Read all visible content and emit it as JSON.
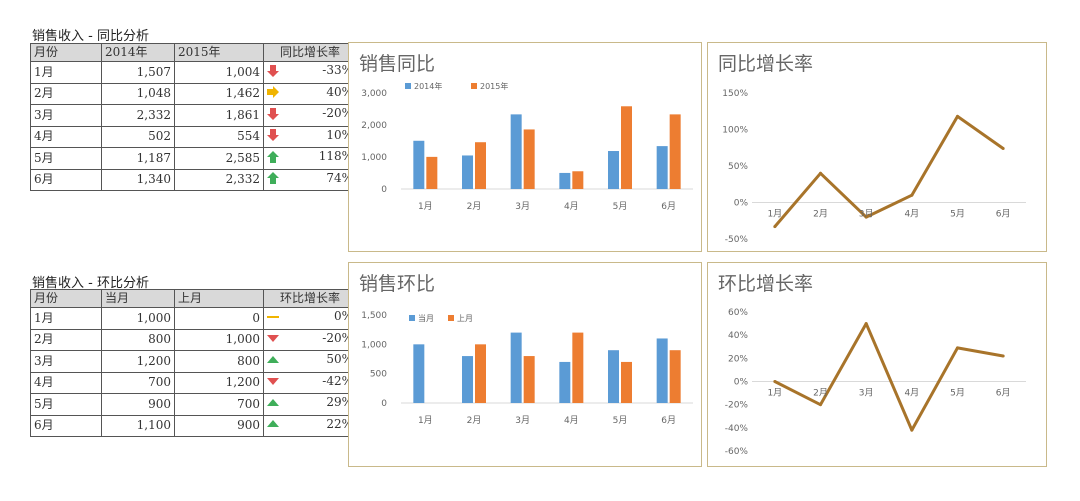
{
  "tables": {
    "yoy": {
      "title": "销售收入 - 同比分析",
      "headers": [
        "月份",
        "2014年",
        "2015年",
        "同比增长率"
      ],
      "rows": [
        {
          "month": "1月",
          "a": "1,507",
          "b": "1,004",
          "icon": "down-arrow-red",
          "pct": "-33%"
        },
        {
          "month": "2月",
          "a": "1,048",
          "b": "1,462",
          "icon": "right-arrow-yellow",
          "pct": "40%"
        },
        {
          "month": "3月",
          "a": "2,332",
          "b": "1,861",
          "icon": "down-arrow-red",
          "pct": "-20%"
        },
        {
          "month": "4月",
          "a": "502",
          "b": "554",
          "icon": "down-arrow-red",
          "pct": "10%"
        },
        {
          "month": "5月",
          "a": "1,187",
          "b": "2,585",
          "icon": "up-arrow-green",
          "pct": "118%"
        },
        {
          "month": "6月",
          "a": "1,340",
          "b": "2,332",
          "icon": "up-arrow-green",
          "pct": "74%"
        }
      ]
    },
    "mom": {
      "title": "销售收入 - 环比分析",
      "headers": [
        "月份",
        "当月",
        "上月",
        "环比增长率"
      ],
      "rows": [
        {
          "month": "1月",
          "a": "1,000",
          "b": "0",
          "icon": "flat-dash-yellow",
          "pct": "0%"
        },
        {
          "month": "2月",
          "a": "800",
          "b": "1,000",
          "icon": "down-triangle-red",
          "pct": "-20%"
        },
        {
          "month": "3月",
          "a": "1,200",
          "b": "800",
          "icon": "up-triangle-green",
          "pct": "50%"
        },
        {
          "month": "4月",
          "a": "700",
          "b": "1,200",
          "icon": "down-triangle-red",
          "pct": "-42%"
        },
        {
          "month": "5月",
          "a": "900",
          "b": "700",
          "icon": "up-triangle-green",
          "pct": "29%"
        },
        {
          "month": "6月",
          "a": "1,100",
          "b": "900",
          "icon": "up-triangle-green",
          "pct": "22%"
        }
      ]
    }
  },
  "colors": {
    "series_blue": "#5b9bd5",
    "series_orange": "#ed7d31",
    "line_color": "#a8742a",
    "arrow_red": "#e05050",
    "arrow_green": "#3fae5a",
    "arrow_yellow": "#f0b400",
    "panel_border": "#c9b98a"
  },
  "chart_data": [
    {
      "id": "yoy-bar",
      "type": "bar",
      "title": "销售同比",
      "categories": [
        "1月",
        "2月",
        "3月",
        "4月",
        "5月",
        "6月"
      ],
      "series": [
        {
          "name": "2014年",
          "values": [
            1507,
            1048,
            2332,
            502,
            1187,
            1340
          ]
        },
        {
          "name": "2015年",
          "values": [
            1004,
            1462,
            1861,
            554,
            2585,
            2332
          ]
        }
      ],
      "yticks": [
        "3,000",
        "2,000",
        "1,000",
        "0"
      ],
      "ylim": [
        0,
        3000
      ],
      "legend": "top-left"
    },
    {
      "id": "yoy-line",
      "type": "line",
      "title": "同比增长率",
      "categories": [
        "1月",
        "2月",
        "3月",
        "4月",
        "5月",
        "6月"
      ],
      "values": [
        -33,
        40,
        -20,
        10,
        118,
        74
      ],
      "yticks": [
        "150%",
        "100%",
        "50%",
        "0%",
        "-50%"
      ],
      "ylim": [
        -50,
        150
      ]
    },
    {
      "id": "mom-bar",
      "type": "bar",
      "title": "销售环比",
      "categories": [
        "1月",
        "2月",
        "3月",
        "4月",
        "5月",
        "6月"
      ],
      "series": [
        {
          "name": "当月",
          "values": [
            1000,
            800,
            1200,
            700,
            900,
            1100
          ]
        },
        {
          "name": "上月",
          "values": [
            0,
            1000,
            800,
            1200,
            700,
            900
          ]
        }
      ],
      "yticks": [
        "1,500",
        "1,000",
        "500",
        "0"
      ],
      "ylim": [
        0,
        1500
      ],
      "legend": "top-left"
    },
    {
      "id": "mom-line",
      "type": "line",
      "title": "环比增长率",
      "categories": [
        "1月",
        "2月",
        "3月",
        "4月",
        "5月",
        "6月"
      ],
      "values": [
        0,
        -20,
        50,
        -42,
        29,
        22
      ],
      "yticks": [
        "60%",
        "40%",
        "20%",
        "0%",
        "-20%",
        "-40%",
        "-60%"
      ],
      "ylim": [
        -60,
        60
      ]
    }
  ]
}
